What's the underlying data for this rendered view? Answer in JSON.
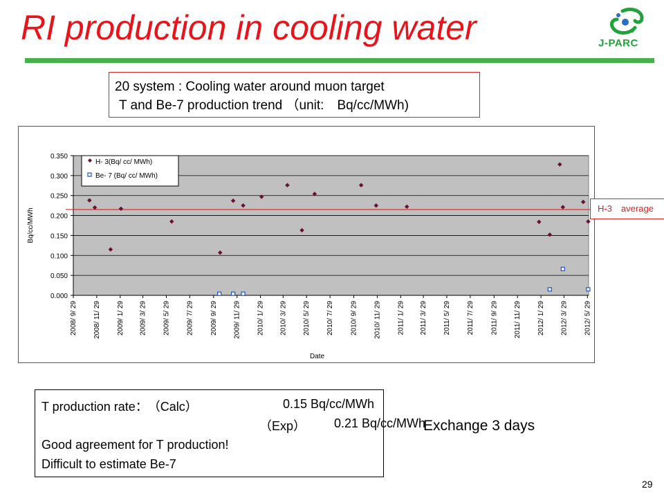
{
  "slide": {
    "title": "RI production in cooling water",
    "logo_text": "J-PARC",
    "page_number": "29",
    "colors": {
      "title": "#e8141c",
      "rule": "#47b04b",
      "logo": "#1fa33a",
      "average_line": "#e02020"
    }
  },
  "description": {
    "line1": "20 system : Cooling water around muon target",
    "line2": "T and Be-7 production trend （unit:　Bq/cc/MWh)"
  },
  "average_label": "H-3　average",
  "results": {
    "calc_label": "T production rate：　（Calc）",
    "calc_value": "0.15 Bq/cc/MWh",
    "exp_label": "（Exp）",
    "exp_value": "0.21 Bq/cc/MWh",
    "agreement": "Good agreement  for T production!",
    "difficulty": "Difficult to estimate Be-7"
  },
  "exchange_note": "Exchange 3 days",
  "chart_data": {
    "type": "scatter",
    "xlabel": "Date",
    "ylabel": "Bq/cc/MWh",
    "ylim": [
      0,
      0.35
    ],
    "yticks": [
      "0.000",
      "0.050",
      "0.100",
      "0.150",
      "0.200",
      "0.250",
      "0.300",
      "0.350"
    ],
    "x_tick_labels": [
      "2008/ 9/ 29",
      "2008/ 11/ 29",
      "2009/ 1/ 29",
      "2009/ 3/ 29",
      "2009/ 5/ 29",
      "2009/ 7/ 29",
      "2009/ 9/ 29",
      "2009/ 11/ 29",
      "2010/ 1/ 29",
      "2010/ 3/ 29",
      "2010/ 5/ 29",
      "2010/ 7/ 29",
      "2010/ 9/ 29",
      "2010/ 11/ 29",
      "2011/ 1/ 29",
      "2011/ 3/ 29",
      "2011/ 5/ 29",
      "2011/ 7/ 29",
      "2011/ 9/ 29",
      "2011/ 11/ 29",
      "2012/ 1/ 29",
      "2012/ 3/ 29",
      "2012/ 5/ 29"
    ],
    "xlim": [
      "2008-09-29",
      "2012-06-01"
    ],
    "grid": {
      "horizontal": true,
      "vertical": false
    },
    "legend_position": "top-left",
    "average": {
      "label": "H-3　average",
      "value": 0.215,
      "color": "#e02020"
    },
    "series": [
      {
        "name": "H- 3(Bq/ cc/ MWh)",
        "marker": "filled-diamond",
        "color": "#6b1030",
        "points": [
          {
            "x": "2008-11-10",
            "y": 0.238
          },
          {
            "x": "2008-11-24",
            "y": 0.22
          },
          {
            "x": "2009-01-04",
            "y": 0.115
          },
          {
            "x": "2009-01-31",
            "y": 0.217
          },
          {
            "x": "2009-06-12",
            "y": 0.185
          },
          {
            "x": "2009-10-16",
            "y": 0.107
          },
          {
            "x": "2009-11-19",
            "y": 0.237
          },
          {
            "x": "2009-12-15",
            "y": 0.225
          },
          {
            "x": "2010-02-01",
            "y": 0.247
          },
          {
            "x": "2010-04-09",
            "y": 0.276
          },
          {
            "x": "2010-05-17",
            "y": 0.163
          },
          {
            "x": "2010-06-19",
            "y": 0.254
          },
          {
            "x": "2010-10-18",
            "y": 0.276
          },
          {
            "x": "2010-11-26",
            "y": 0.225
          },
          {
            "x": "2011-02-14",
            "y": 0.222
          },
          {
            "x": "2012-01-24",
            "y": 0.184
          },
          {
            "x": "2012-02-21",
            "y": 0.152
          },
          {
            "x": "2012-03-18",
            "y": 0.328
          },
          {
            "x": "2012-03-26",
            "y": 0.221
          },
          {
            "x": "2012-05-18",
            "y": 0.234
          },
          {
            "x": "2012-05-31",
            "y": 0.185
          }
        ]
      },
      {
        "name": "Be- 7 (Bq/ cc/ MWh)",
        "marker": "open-square",
        "color": "#2050c8",
        "points": [
          {
            "x": "2009-10-14",
            "y": 0.004
          },
          {
            "x": "2009-11-19",
            "y": 0.004
          },
          {
            "x": "2009-12-15",
            "y": 0.004
          },
          {
            "x": "2012-02-21",
            "y": 0.015
          },
          {
            "x": "2012-03-26",
            "y": 0.066
          },
          {
            "x": "2012-05-31",
            "y": 0.015
          }
        ]
      }
    ]
  }
}
